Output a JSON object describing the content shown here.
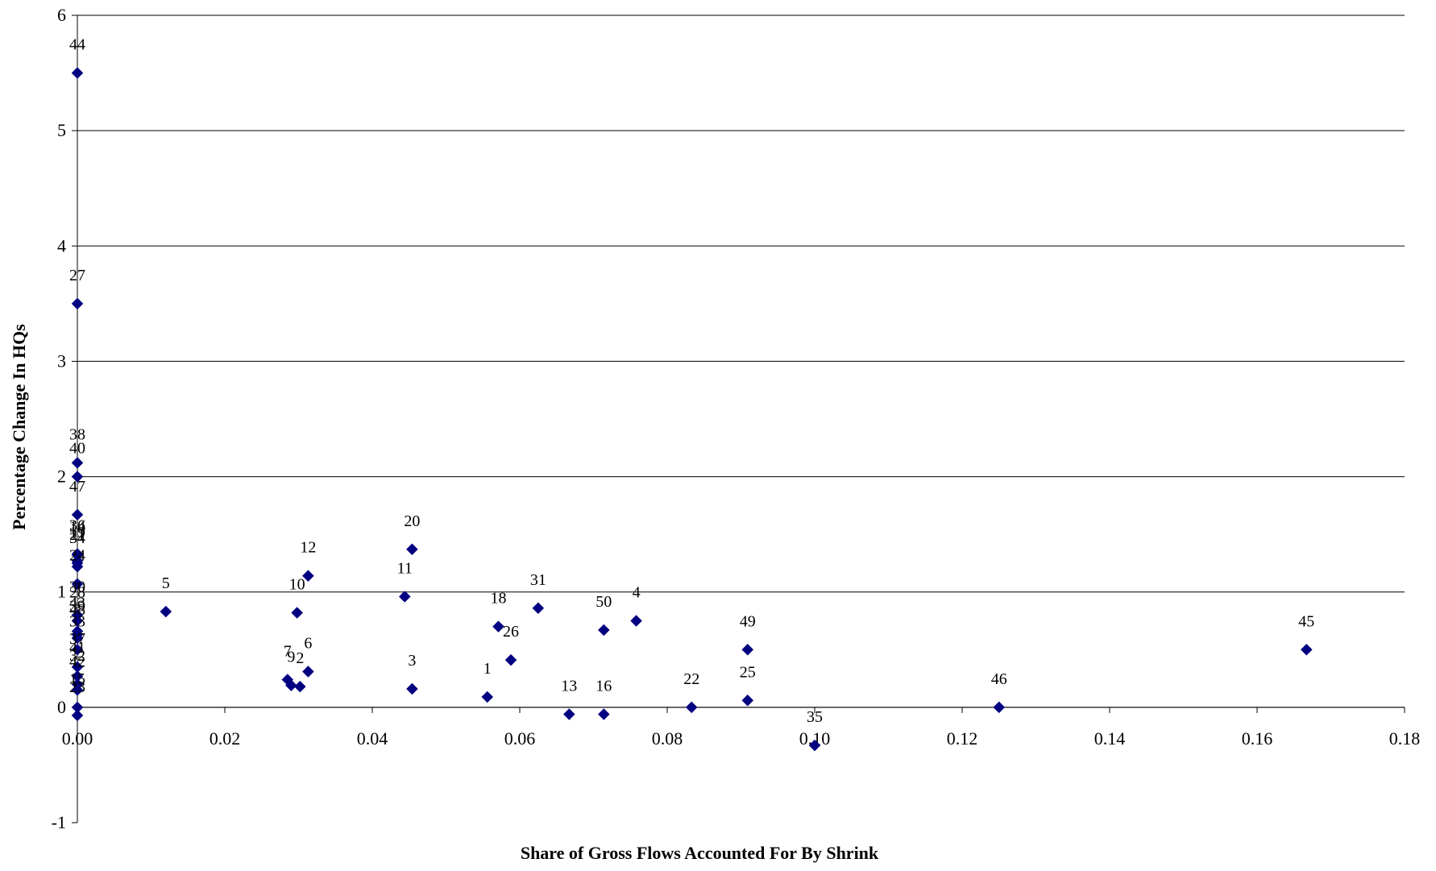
{
  "chart_data": {
    "type": "scatter",
    "title": "",
    "xlabel": "Share of Gross Flows Accounted For By Shrink",
    "ylabel": "Percentage Change In HQs",
    "xlim": [
      0,
      0.18
    ],
    "ylim": [
      -1,
      6
    ],
    "x_ticks": [
      "0.00",
      "0.02",
      "0.04",
      "0.06",
      "0.08",
      "0.10",
      "0.12",
      "0.14",
      "0.16",
      "0.18"
    ],
    "y_ticks": [
      "-1",
      "0",
      "1",
      "2",
      "3",
      "4",
      "5",
      "6"
    ],
    "grid": "horizontal",
    "legend": "none",
    "marker": "diamond",
    "marker_color": "#000080",
    "gridline_color": "#000000",
    "points": [
      {
        "label": "44",
        "x": 0.0,
        "y": 5.5
      },
      {
        "label": "27",
        "x": 0.0,
        "y": 3.5
      },
      {
        "label": "38",
        "x": 0.0,
        "y": 2.12
      },
      {
        "label": "40",
        "x": 0.0,
        "y": 2.0
      },
      {
        "label": "47",
        "x": 0.0,
        "y": 1.67
      },
      {
        "label": "36",
        "x": 0.0,
        "y": 1.33
      },
      {
        "label": "14",
        "x": 0.0,
        "y": 1.32
      },
      {
        "label": "19",
        "x": 0.0,
        "y": 1.27
      },
      {
        "label": "21",
        "x": 0.0,
        "y": 1.25
      },
      {
        "label": "34",
        "x": 0.0,
        "y": 1.22
      },
      {
        "label": "24",
        "x": 0.0,
        "y": 1.07
      },
      {
        "label": "30",
        "x": 0.0,
        "y": 0.8
      },
      {
        "label": "28",
        "x": 0.0,
        "y": 0.75
      },
      {
        "label": "43",
        "x": 0.0,
        "y": 0.66
      },
      {
        "label": "39",
        "x": 0.0,
        "y": 0.63
      },
      {
        "label": "48",
        "x": 0.0,
        "y": 0.6
      },
      {
        "label": "33",
        "x": 0.0,
        "y": 0.5
      },
      {
        "label": "37",
        "x": 0.0,
        "y": 0.35
      },
      {
        "label": "41",
        "x": 0.0,
        "y": 0.27
      },
      {
        "label": "32",
        "x": 0.0,
        "y": 0.2
      },
      {
        "label": "42",
        "x": 0.0,
        "y": 0.15
      },
      {
        "label": "15",
        "x": 0.0,
        "y": 0.0
      },
      {
        "label": "23",
        "x": 0.0,
        "y": -0.07
      },
      {
        "label": "5",
        "x": 0.012,
        "y": 0.83
      },
      {
        "label": "10",
        "x": 0.0298,
        "y": 0.82
      },
      {
        "label": "12",
        "x": 0.0313,
        "y": 1.14
      },
      {
        "label": "7",
        "x": 0.0285,
        "y": 0.24
      },
      {
        "label": "9",
        "x": 0.029,
        "y": 0.19
      },
      {
        "label": "2",
        "x": 0.0302,
        "y": 0.18
      },
      {
        "label": "6",
        "x": 0.0313,
        "y": 0.31
      },
      {
        "label": "11",
        "x": 0.0444,
        "y": 0.96
      },
      {
        "label": "20",
        "x": 0.0454,
        "y": 1.37
      },
      {
        "label": "3",
        "x": 0.0454,
        "y": 0.16
      },
      {
        "label": "1",
        "x": 0.0556,
        "y": 0.09
      },
      {
        "label": "18",
        "x": 0.0571,
        "y": 0.7
      },
      {
        "label": "26",
        "x": 0.0588,
        "y": 0.41
      },
      {
        "label": "31",
        "x": 0.0625,
        "y": 0.86
      },
      {
        "label": "13",
        "x": 0.0667,
        "y": -0.06
      },
      {
        "label": "16",
        "x": 0.0714,
        "y": -0.06
      },
      {
        "label": "50",
        "x": 0.0714,
        "y": 0.67
      },
      {
        "label": "4",
        "x": 0.0758,
        "y": 0.75
      },
      {
        "label": "22",
        "x": 0.0833,
        "y": 0.0
      },
      {
        "label": "49",
        "x": 0.0909,
        "y": 0.5
      },
      {
        "label": "25",
        "x": 0.0909,
        "y": 0.06
      },
      {
        "label": "35",
        "x": 0.1,
        "y": -0.33
      },
      {
        "label": "46",
        "x": 0.125,
        "y": 0.0
      },
      {
        "label": "45",
        "x": 0.1667,
        "y": 0.5
      }
    ]
  }
}
